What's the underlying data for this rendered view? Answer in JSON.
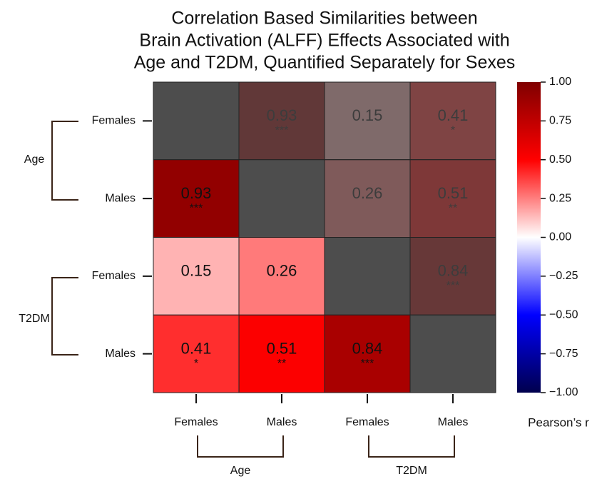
{
  "chart_data": {
    "type": "heatmap",
    "title": [
      "Correlation Based Similarities between",
      "Brain Activation (ALFF) Effects Associated with",
      "Age and T2DM, Quantified Separately for Sexes"
    ],
    "row_labels": [
      "Females",
      "Males",
      "Females",
      "Males"
    ],
    "column_labels": [
      "Females",
      "Males",
      "Females",
      "Males"
    ],
    "row_groups": [
      "Age",
      "T2DM"
    ],
    "column_groups": [
      "Age",
      "T2DM"
    ],
    "values": [
      [
        null,
        0.93,
        0.15,
        0.41
      ],
      [
        0.93,
        null,
        0.26,
        0.51
      ],
      [
        0.15,
        0.26,
        null,
        0.84
      ],
      [
        0.41,
        0.51,
        0.84,
        null
      ]
    ],
    "significance": [
      [
        null,
        "***",
        null,
        "*"
      ],
      [
        "***",
        null,
        null,
        "**"
      ],
      [
        null,
        null,
        null,
        "***"
      ],
      [
        "*",
        "**",
        "***",
        null
      ]
    ],
    "zlim": [
      -1,
      1
    ],
    "zticks": [
      {
        "value": 1,
        "label": "1.00"
      },
      {
        "value": 0.75,
        "label": "0.75"
      },
      {
        "value": 0.5,
        "label": "0.50"
      },
      {
        "value": 0.25,
        "label": "0.25"
      },
      {
        "value": 0,
        "label": "0.00"
      },
      {
        "value": -0.25,
        "label": "−0.25"
      },
      {
        "value": -0.5,
        "label": "−0.50"
      },
      {
        "value": -0.75,
        "label": "−0.75"
      },
      {
        "value": -1,
        "label": "−1.00"
      }
    ],
    "colorbar_label": "Pearson’s r",
    "colormap": "seismic",
    "diagonal_color": "#4d4d4d"
  }
}
